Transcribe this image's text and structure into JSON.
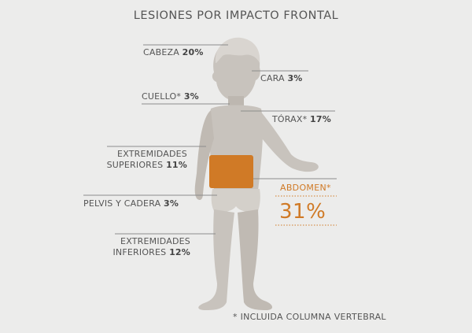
{
  "title": "LESIONES POR IMPACTO FRONTAL",
  "labels": {
    "cabeza": {
      "name": "CABEZA",
      "pct": "20%"
    },
    "cara": {
      "name": "CARA",
      "pct": "3%"
    },
    "cuello": {
      "name": "CUELLO*",
      "pct": "3%"
    },
    "torax": {
      "name": "TÓRAX*",
      "pct": "17%"
    },
    "extremidades_superiores": {
      "line1": "EXTREMIDADES",
      "line2": "SUPERIORES",
      "pct": "11%"
    },
    "pelvis": {
      "name": "PELVIS Y CADERA",
      "pct": "3%"
    },
    "extremidades_inferiores": {
      "line1": "EXTREMIDADES",
      "line2": "INFERIORES",
      "pct": "12%"
    },
    "abdomen": {
      "name": "ABDOMEN*",
      "pct": "31%"
    }
  },
  "footnote": "* INCLUIDA COLUMNA VERTEBRAL",
  "colors": {
    "background": "#ececeb",
    "body": "#c8c3bd",
    "body_shadow": "#b9b3ac",
    "highlight": "#d07a26",
    "leader": "#8c8c8c"
  }
}
